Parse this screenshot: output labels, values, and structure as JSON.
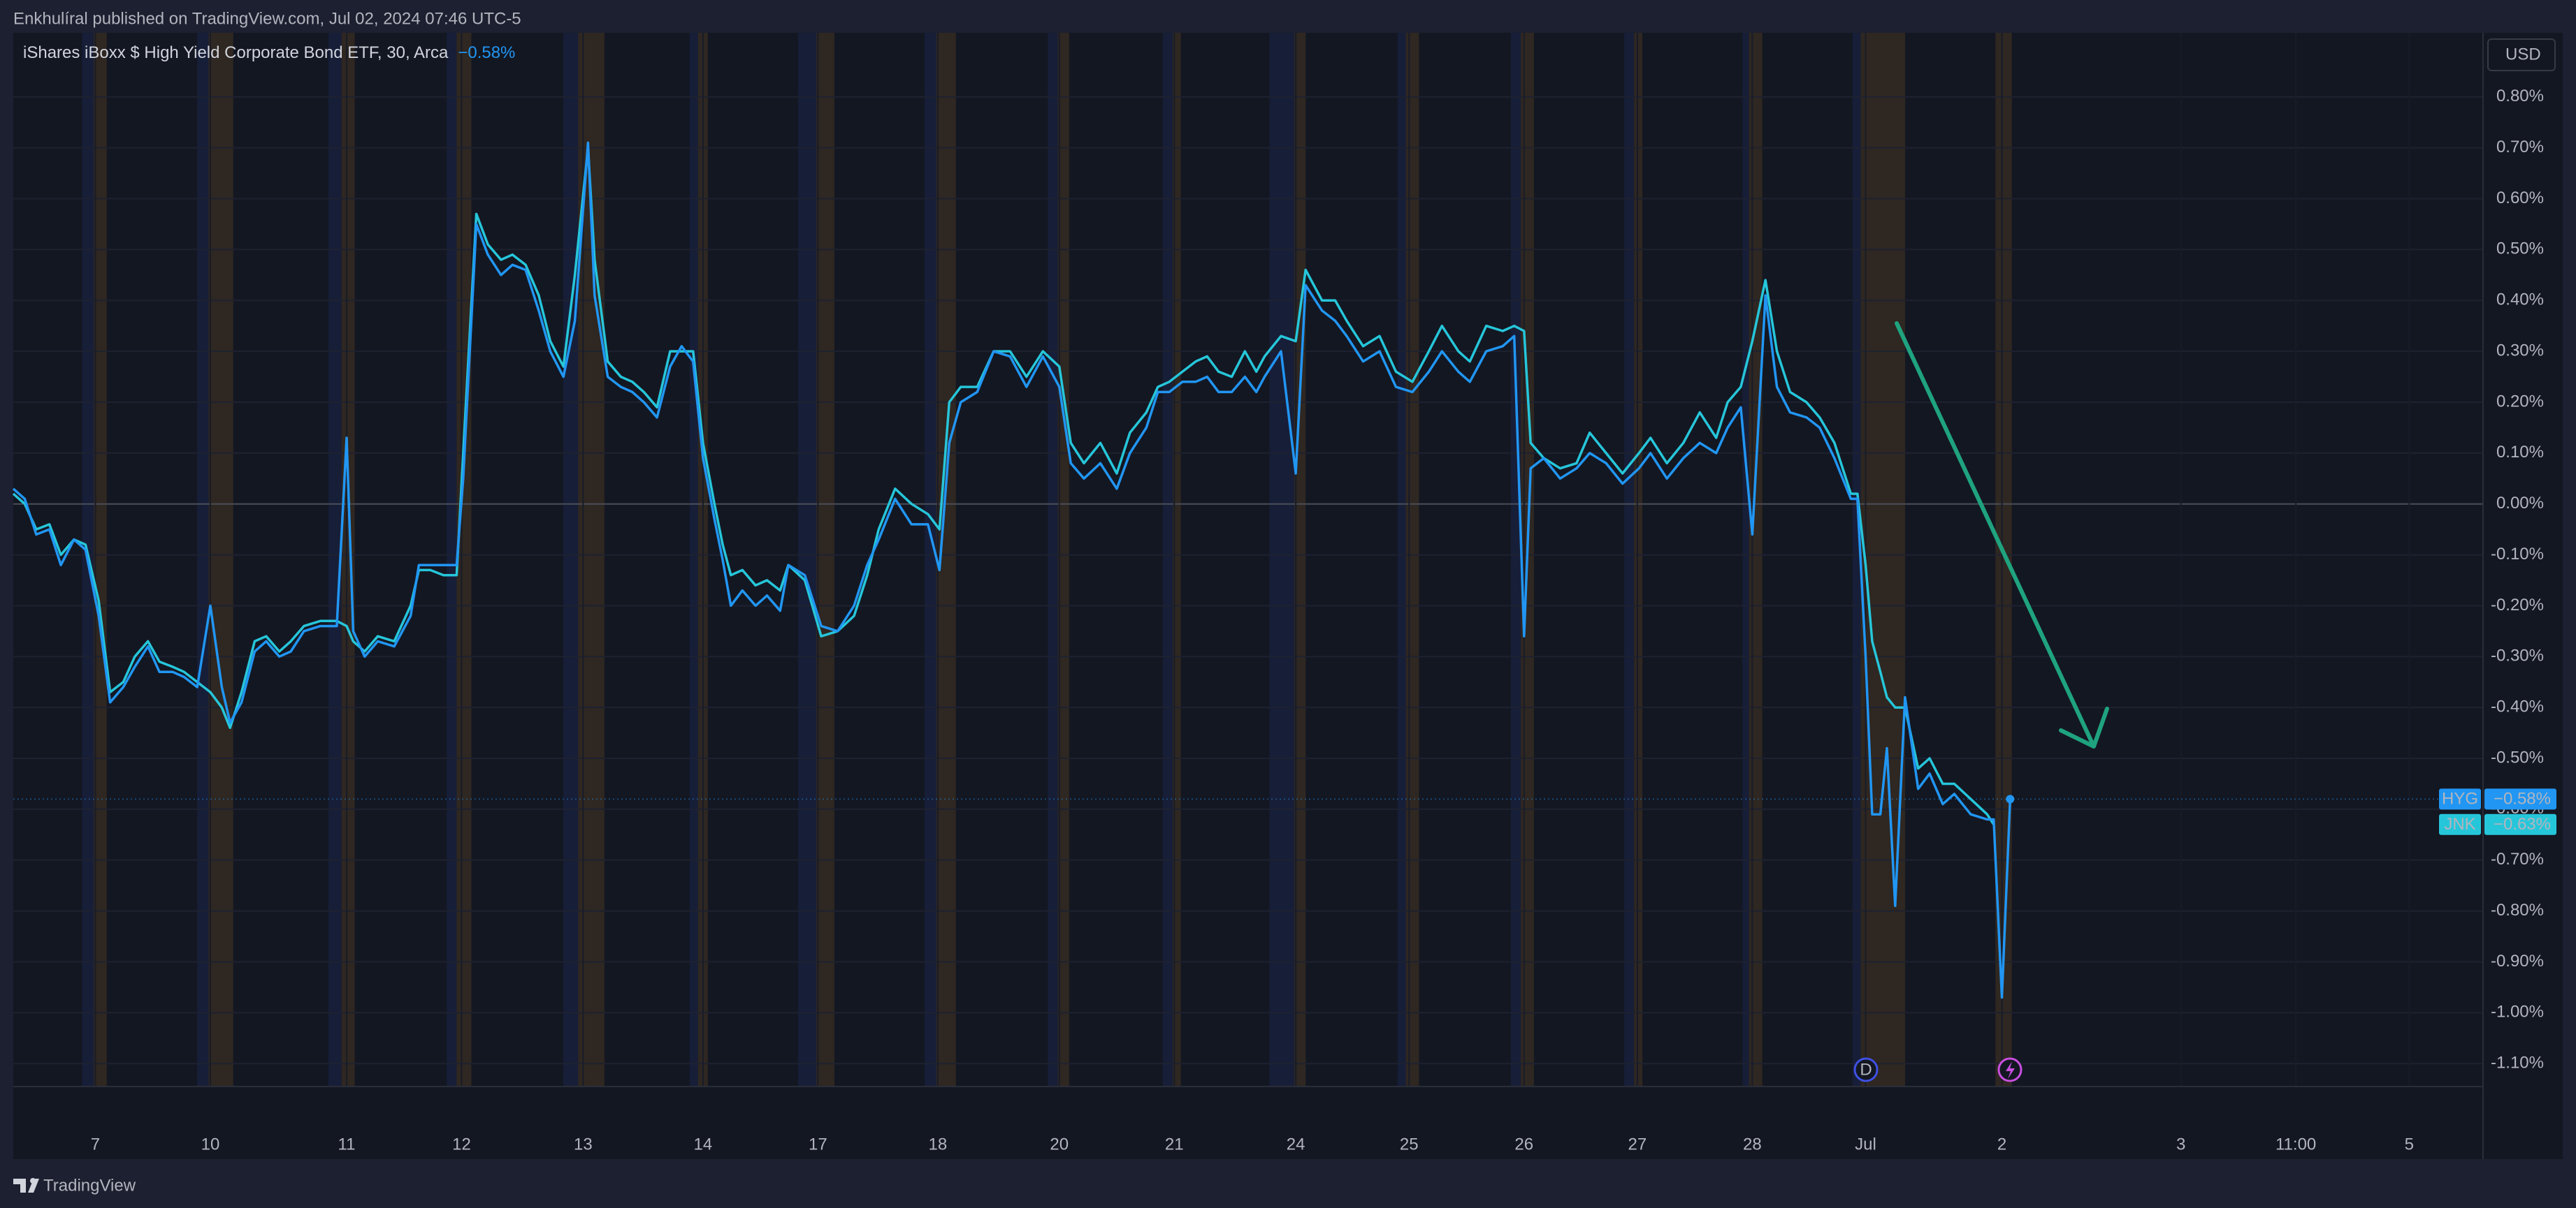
{
  "page": {
    "published": "Enkhulíral published on TradingView.com, Jul 02, 2024 07:46 UTC-5",
    "currency": "USD",
    "brand": "TradingView",
    "marker": "D"
  },
  "chart_data": {
    "type": "line",
    "title": "iShares iBoxx $ High Yield Corporate Bond ETF, 30, Arca",
    "x": [
      0,
      1.4,
      2.8,
      4.4,
      5.8,
      7.4,
      8.8,
      10.4,
      11.8,
      13.4,
      14.8,
      16.4,
      17.8,
      19.4,
      20.8,
      22.4,
      24,
      25.4,
      26.4,
      27.8,
      29.4,
      30.8,
      32.4,
      33.8,
      35.4,
      37.4,
      39.4,
      40.6,
      41.4,
      42.8,
      44.4,
      46.4,
      48.4,
      49.4,
      50.8,
      52.4,
      54,
      54.8,
      56.4,
      57.8,
      59.4,
      60.8,
      62.4,
      64,
      65.4,
      67,
      68.4,
      70,
      70.8,
      72.4,
      74,
      75.4,
      76.8,
      78.4,
      80,
      81.4,
      82.8,
      84,
      85.4,
      86.4,
      87.4,
      88.8,
      90.4,
      91.8,
      93.4,
      94.4,
      96.4,
      98.4,
      100.4,
      102.4,
      104,
      105.4,
      107.4,
      109.4,
      111.4,
      112.8,
      114,
      115.4,
      117.4,
      119.4,
      121.4,
      123.4,
      125.4,
      127.4,
      128.8,
      130.4,
      132.4,
      134.4,
      136,
      138,
      139.4,
      140.8,
      142.4,
      144,
      145.4,
      146.8,
      148.4,
      150,
      151.4,
      152.4,
      154.4,
      156.2,
      157.4,
      159.4,
      161,
      162.4,
      164.4,
      166.4,
      168.4,
      170.4,
      172.4,
      174,
      176,
      177.4,
      179.4,
      181.4,
      182.8,
      184,
      184.8,
      186.4,
      188.4,
      190.4,
      192,
      194,
      196,
      198,
      199.4,
      201.4,
      203.4,
      205.4,
      207.4,
      208.8,
      210.4,
      211.8,
      213.4,
      214.8,
      216.4,
      218.4,
      220,
      221.8,
      223.8,
      224.6,
      225.6,
      226.4,
      227.4,
      228.2,
      229.2,
      230.4,
      232,
      233.4,
      235,
      236.4,
      238.4,
      240.4,
      241.2,
      242.2,
      243.2
    ],
    "series": [
      {
        "name": "HYG",
        "color": "#2196f3",
        "price_label": "−0.58%",
        "values": [
          0.03,
          0.01,
          -0.06,
          -0.05,
          -0.12,
          -0.07,
          -0.09,
          -0.22,
          -0.39,
          -0.36,
          -0.32,
          -0.28,
          -0.33,
          -0.33,
          -0.34,
          -0.36,
          -0.2,
          -0.36,
          -0.43,
          -0.39,
          -0.29,
          -0.27,
          -0.3,
          -0.29,
          -0.25,
          -0.24,
          -0.24,
          0.13,
          -0.25,
          -0.3,
          -0.27,
          -0.28,
          -0.22,
          -0.12,
          -0.12,
          -0.12,
          -0.12,
          0.05,
          0.55,
          0.49,
          0.45,
          0.47,
          0.46,
          0.38,
          0.3,
          0.25,
          0.36,
          0.71,
          0.41,
          0.25,
          0.23,
          0.22,
          0.2,
          0.17,
          0.27,
          0.31,
          0.28,
          0.09,
          -0.03,
          -0.11,
          -0.2,
          -0.17,
          -0.2,
          -0.18,
          -0.21,
          -0.12,
          -0.14,
          -0.24,
          -0.25,
          -0.2,
          -0.12,
          -0.07,
          0.01,
          -0.04,
          -0.04,
          -0.13,
          0.12,
          0.2,
          0.22,
          0.3,
          0.29,
          0.23,
          0.29,
          0.23,
          0.08,
          0.05,
          0.08,
          0.03,
          0.1,
          0.15,
          0.22,
          0.22,
          0.24,
          0.24,
          0.25,
          0.22,
          0.22,
          0.25,
          0.22,
          0.25,
          0.3,
          0.06,
          0.43,
          0.38,
          0.36,
          0.33,
          0.28,
          0.3,
          0.23,
          0.22,
          0.26,
          0.3,
          0.26,
          0.24,
          0.3,
          0.31,
          0.33,
          -0.26,
          0.07,
          0.09,
          0.05,
          0.07,
          0.1,
          0.08,
          0.04,
          0.07,
          0.1,
          0.05,
          0.09,
          0.12,
          0.1,
          0.15,
          0.19,
          -0.06,
          0.41,
          0.23,
          0.18,
          0.17,
          0.15,
          0.09,
          0.01,
          0.01,
          -0.3,
          -0.61,
          -0.61,
          -0.48,
          -0.79,
          -0.38,
          -0.56,
          -0.53,
          -0.59,
          -0.57,
          -0.61,
          -0.62,
          -0.62,
          -0.97,
          -0.58
        ]
      },
      {
        "name": "JNK",
        "color": "#26c6da",
        "price_label": "−0.63%",
        "values": [
          0.02,
          0.0,
          -0.05,
          -0.04,
          -0.1,
          -0.07,
          -0.08,
          -0.19,
          -0.37,
          -0.35,
          -0.3,
          -0.27,
          -0.31,
          -0.32,
          -0.33,
          -0.35,
          -0.37,
          -0.4,
          -0.44,
          -0.37,
          -0.27,
          -0.26,
          -0.29,
          -0.27,
          -0.24,
          -0.23,
          -0.23,
          -0.24,
          -0.27,
          -0.29,
          -0.26,
          -0.27,
          -0.2,
          -0.13,
          -0.13,
          -0.14,
          -0.14,
          0.1,
          0.57,
          0.51,
          0.48,
          0.49,
          0.47,
          0.41,
          0.32,
          0.27,
          0.45,
          0.7,
          0.48,
          0.28,
          0.25,
          0.24,
          0.22,
          0.19,
          0.3,
          0.3,
          0.3,
          0.12,
          0.0,
          -0.08,
          -0.14,
          -0.13,
          -0.16,
          -0.15,
          -0.17,
          -0.12,
          -0.15,
          -0.26,
          -0.25,
          -0.22,
          -0.14,
          -0.05,
          0.03,
          0.0,
          -0.02,
          -0.05,
          0.2,
          0.23,
          0.23,
          0.3,
          0.3,
          0.25,
          0.3,
          0.27,
          0.12,
          0.08,
          0.12,
          0.06,
          0.14,
          0.18,
          0.23,
          0.24,
          0.26,
          0.28,
          0.29,
          0.26,
          0.25,
          0.3,
          0.26,
          0.29,
          0.33,
          0.32,
          0.46,
          0.4,
          0.4,
          0.36,
          0.31,
          0.33,
          0.26,
          0.24,
          0.3,
          0.35,
          0.3,
          0.28,
          0.35,
          0.34,
          0.35,
          0.34,
          0.12,
          0.09,
          0.07,
          0.08,
          0.14,
          0.1,
          0.06,
          0.1,
          0.13,
          0.08,
          0.12,
          0.18,
          0.13,
          0.2,
          0.23,
          0.32,
          0.44,
          0.3,
          0.22,
          0.2,
          0.17,
          0.12,
          0.02,
          0.02,
          -0.12,
          -0.27,
          -0.33,
          -0.38,
          -0.4,
          -0.4,
          -0.52,
          -0.5,
          -0.55,
          -0.55,
          -0.58,
          -0.61,
          -0.63,
          null,
          null
        ]
      }
    ],
    "xlim": [
      0,
      300.8
    ],
    "xticks": [
      {
        "value": 10,
        "label": "7"
      },
      {
        "value": 24,
        "label": "10"
      },
      {
        "value": 40.6,
        "label": "11"
      },
      {
        "value": 54.6,
        "label": "12"
      },
      {
        "value": 69.4,
        "label": "13"
      },
      {
        "value": 84,
        "label": "14"
      },
      {
        "value": 98,
        "label": "17"
      },
      {
        "value": 112.6,
        "label": "18"
      },
      {
        "value": 127.4,
        "label": "20"
      },
      {
        "value": 141.4,
        "label": "21"
      },
      {
        "value": 156.2,
        "label": "24"
      },
      {
        "value": 170,
        "label": "25"
      },
      {
        "value": 184,
        "label": "26"
      },
      {
        "value": 197.8,
        "label": "27"
      },
      {
        "value": 211.8,
        "label": "28"
      },
      {
        "value": 225.6,
        "label": "Jul"
      },
      {
        "value": 242.2,
        "label": "2"
      },
      {
        "value": 264,
        "label": "3"
      },
      {
        "value": 278,
        "label": "11:00"
      },
      {
        "value": 291.8,
        "label": "5"
      }
    ],
    "ylim": [
      -1.145,
      0.926
    ],
    "yticks": [
      {
        "value": 0.8,
        "label": "0.80%"
      },
      {
        "value": 0.7,
        "label": "0.70%"
      },
      {
        "value": 0.6,
        "label": "0.60%"
      },
      {
        "value": 0.5,
        "label": "0.50%"
      },
      {
        "value": 0.4,
        "label": "0.40%"
      },
      {
        "value": 0.3,
        "label": "0.30%"
      },
      {
        "value": 0.2,
        "label": "0.20%"
      },
      {
        "value": 0.1,
        "label": "0.10%"
      },
      {
        "value": 0,
        "label": "0.00%"
      },
      {
        "value": -0.1,
        "label": "-0.10%"
      },
      {
        "value": -0.2,
        "label": "-0.20%"
      },
      {
        "value": -0.3,
        "label": "-0.30%"
      },
      {
        "value": -0.4,
        "label": "-0.40%"
      },
      {
        "value": -0.5,
        "label": "-0.50%"
      },
      {
        "value": -0.6,
        "label": "-0.60%"
      },
      {
        "value": -0.7,
        "label": "-0.70%"
      },
      {
        "value": -0.8,
        "label": "-0.80%"
      },
      {
        "value": -0.9,
        "label": "-0.90%"
      },
      {
        "value": -1.0,
        "label": "-1.00%"
      },
      {
        "value": -1.1,
        "label": "-1.10%"
      }
    ],
    "grid": true
  }
}
